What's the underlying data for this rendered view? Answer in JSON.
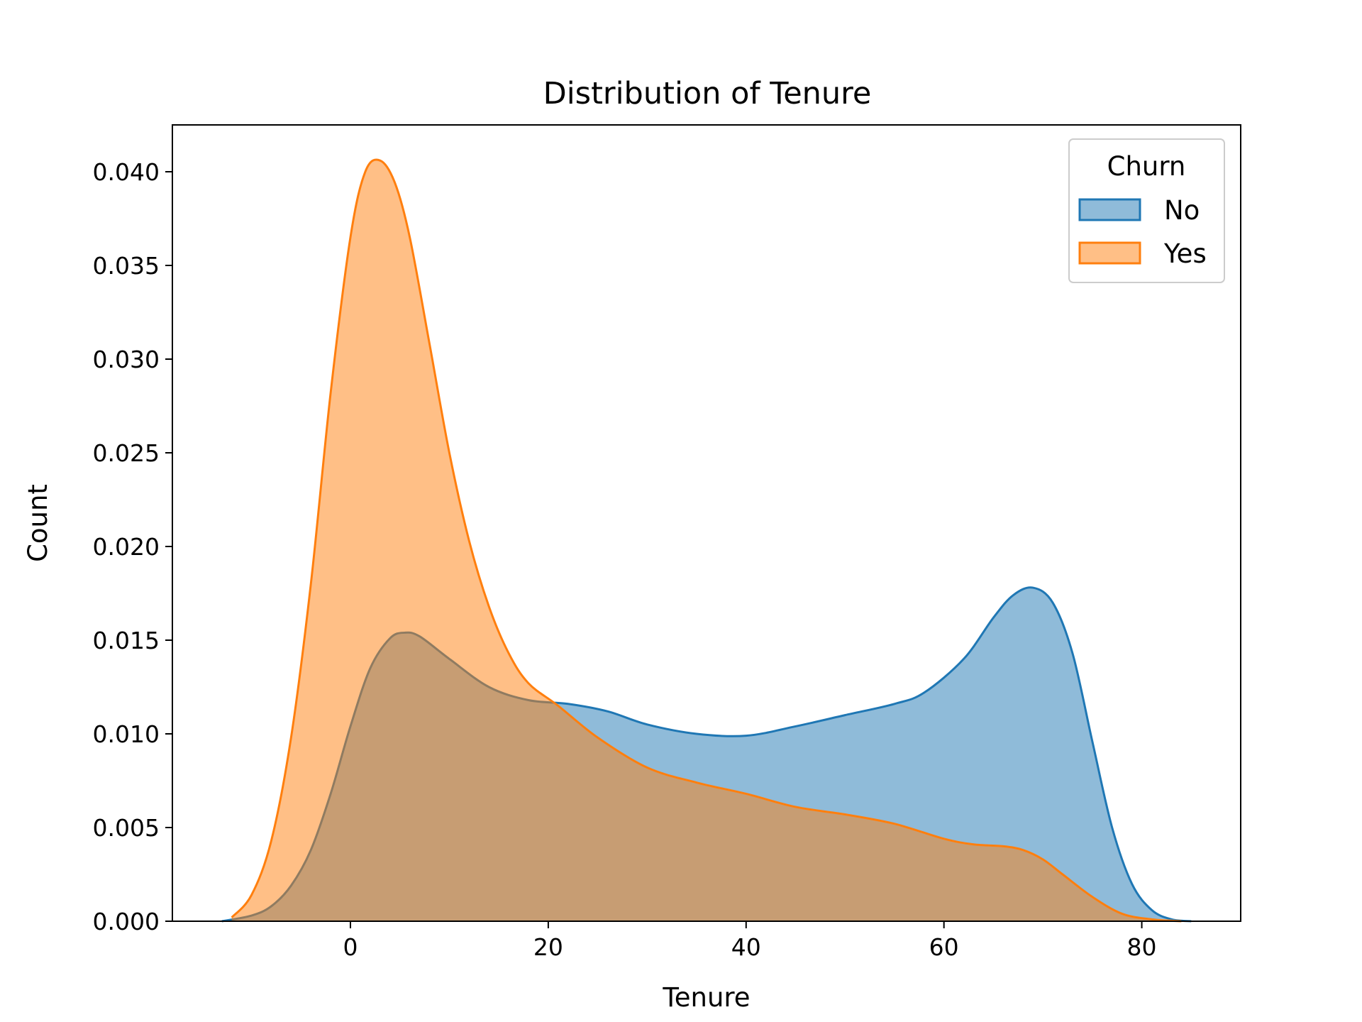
{
  "chart_data": {
    "type": "area",
    "title": "Distribution of Tenure",
    "xlabel": "Tenure",
    "ylabel": "Count",
    "xlim": [
      -18,
      90
    ],
    "ylim": [
      0,
      0.0425
    ],
    "x_ticks": [
      0,
      20,
      40,
      60,
      80
    ],
    "y_ticks": [
      0.0,
      0.005,
      0.01,
      0.015,
      0.02,
      0.025,
      0.03,
      0.035,
      0.04
    ],
    "x_tick_labels": [
      "0",
      "20",
      "40",
      "60",
      "80"
    ],
    "y_tick_labels": [
      "0.000",
      "0.005",
      "0.010",
      "0.015",
      "0.020",
      "0.025",
      "0.030",
      "0.035",
      "0.040"
    ],
    "grid": false,
    "legend": {
      "title": "Churn",
      "placement": "top-right"
    },
    "series": [
      {
        "name": "No",
        "color": "#1f77b4",
        "fill_opacity": 0.5,
        "x": [
          -13,
          -10,
          -8,
          -6,
          -4,
          -2,
          0,
          2,
          4,
          5.5,
          7,
          10,
          14,
          18,
          22,
          26,
          30,
          35,
          40,
          45,
          50,
          55,
          58,
          62,
          65,
          67,
          69,
          71,
          73,
          75,
          77,
          79,
          81,
          83,
          85
        ],
        "y": [
          0.0,
          0.0003,
          0.0008,
          0.0019,
          0.0038,
          0.0068,
          0.0104,
          0.0135,
          0.0151,
          0.0154,
          0.0152,
          0.014,
          0.0125,
          0.0118,
          0.0116,
          0.0112,
          0.0105,
          0.01,
          0.0099,
          0.0104,
          0.011,
          0.0116,
          0.0122,
          0.014,
          0.0162,
          0.0174,
          0.0178,
          0.017,
          0.0143,
          0.0096,
          0.005,
          0.002,
          0.0006,
          0.0001,
          0.0
        ]
      },
      {
        "name": "Yes",
        "color": "#ff7f0e",
        "fill_opacity": 0.5,
        "x": [
          -12,
          -10,
          -8,
          -6,
          -4,
          -2,
          0,
          1.5,
          3,
          4.5,
          6,
          8,
          10,
          12,
          14,
          16,
          18,
          21,
          25,
          30,
          35,
          40,
          45,
          50,
          55,
          60,
          63,
          66,
          68,
          70,
          72,
          75,
          78,
          81,
          84
        ],
        "y": [
          0.0002,
          0.0014,
          0.0043,
          0.0098,
          0.018,
          0.0282,
          0.0365,
          0.04,
          0.0406,
          0.0394,
          0.0365,
          0.0308,
          0.025,
          0.0203,
          0.0168,
          0.0143,
          0.0127,
          0.0115,
          0.0098,
          0.0082,
          0.0074,
          0.0068,
          0.0061,
          0.0057,
          0.0052,
          0.0044,
          0.0041,
          0.004,
          0.0038,
          0.0033,
          0.0025,
          0.0013,
          0.0004,
          0.0001,
          0.0
        ]
      }
    ]
  }
}
